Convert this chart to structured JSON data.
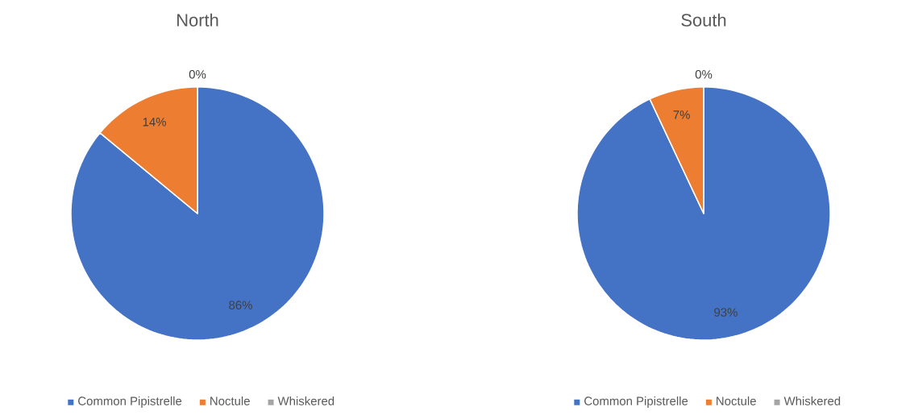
{
  "chart_data": [
    {
      "type": "pie",
      "title": "North",
      "categories": [
        "Common Pipistrelle",
        "Noctule",
        "Whiskered"
      ],
      "values": [
        86,
        14,
        0
      ],
      "colors": [
        "#4472c4",
        "#ed7d31",
        "#a5a5a5"
      ],
      "value_labels": [
        "86%",
        "14%",
        "0%"
      ],
      "legend": "bottom"
    },
    {
      "type": "pie",
      "title": "South",
      "categories": [
        "Common Pipistrelle",
        "Noctule",
        "Whiskered"
      ],
      "values": [
        93,
        7,
        0
      ],
      "colors": [
        "#4472c4",
        "#ed7d31",
        "#a5a5a5"
      ],
      "value_labels": [
        "93%",
        "7%",
        "0%"
      ],
      "legend": "bottom"
    }
  ]
}
